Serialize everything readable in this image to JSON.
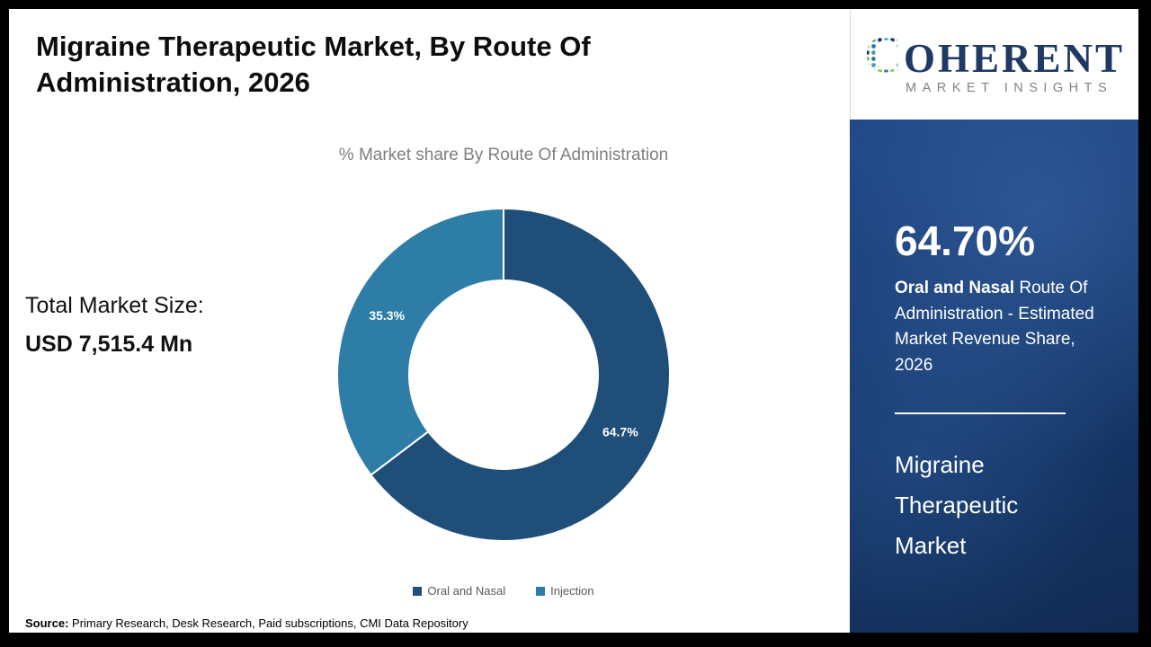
{
  "title": "Migraine Therapeutic Market, By Route Of Administration, 2026",
  "subtitle": "% Market share By Route Of Administration",
  "total_market": {
    "label": "Total Market Size:",
    "value": "USD 7,515.4 Mn"
  },
  "source": {
    "label": "Source:",
    "text": " Primary Research, Desk Research, Paid subscriptions, CMI Data Repository"
  },
  "logo": {
    "word_initial": "C",
    "word_rest": "OHERENT",
    "line2": "MARKET INSIGHTS",
    "navy": "#1f3864",
    "gray": "#808285"
  },
  "sidebar": {
    "headline_value": "64.70%",
    "desc_bold": "Oral and Nasal",
    "desc_rest": " Route Of Administration - Estimated Market Revenue Share, 2026",
    "product": "Migraine Therapeutic Market",
    "bg_base": "#16376a"
  },
  "chart_data": {
    "type": "pie",
    "donut": true,
    "title": "% Market share By Route Of Administration",
    "start_angle_deg": -90,
    "legend_position": "bottom",
    "series": [
      {
        "name": "Oral and Nasal",
        "value": 64.7,
        "label": "64.7%",
        "color": "#1f4e79"
      },
      {
        "name": "Injection",
        "value": 35.3,
        "label": "35.3%",
        "color": "#2d7da7"
      }
    ]
  }
}
